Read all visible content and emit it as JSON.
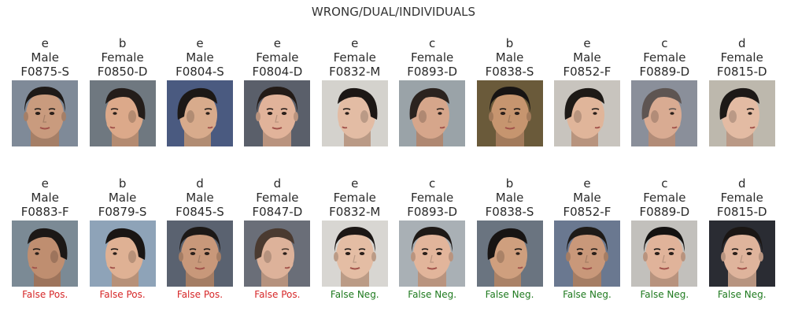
{
  "title": "WRONG/DUAL/INDIVIDUALS",
  "colors": {
    "false_pos": "#d62728",
    "false_neg": "#1f7a1f"
  },
  "row1": [
    {
      "cls": "e",
      "gender": "Male",
      "id": "F0875-S",
      "skin": "#c99b7e",
      "hair": "#1e1a18",
      "bg": "#7f8a98",
      "view": "front"
    },
    {
      "cls": "b",
      "gender": "Female",
      "id": "F0850-D",
      "skin": "#dca98a",
      "hair": "#241d1a",
      "bg": "#6f7880",
      "view": "left"
    },
    {
      "cls": "e",
      "gender": "Male",
      "id": "F0804-S",
      "skin": "#d8ab8c",
      "hair": "#1c1816",
      "bg": "#4a5a80",
      "view": "right"
    },
    {
      "cls": "e",
      "gender": "Female",
      "id": "F0804-D",
      "skin": "#e1b39a",
      "hair": "#231b17",
      "bg": "#5a5f6a",
      "view": "front"
    },
    {
      "cls": "e",
      "gender": "Female",
      "id": "F0832-M",
      "skin": "#e3bca4",
      "hair": "#1c1715",
      "bg": "#d4d2cd",
      "view": "left"
    },
    {
      "cls": "c",
      "gender": "Female",
      "id": "F0893-D",
      "skin": "#d6a68b",
      "hair": "#2b231f",
      "bg": "#9aa3a8",
      "view": "right"
    },
    {
      "cls": "b",
      "gender": "Male",
      "id": "F0838-S",
      "skin": "#c6956f",
      "hair": "#171413",
      "bg": "#6a5a3a",
      "view": "front"
    },
    {
      "cls": "e",
      "gender": "Male",
      "id": "F0852-F",
      "skin": "#e0b59a",
      "hair": "#1e1a17",
      "bg": "#c8c4be",
      "view": "right"
    },
    {
      "cls": "c",
      "gender": "Female",
      "id": "F0889-D",
      "skin": "#d9ab92",
      "hair": "#5e5552",
      "bg": "#8a8f9a",
      "view": "right"
    },
    {
      "cls": "d",
      "gender": "Female",
      "id": "F0815-D",
      "skin": "#e3bba3",
      "hair": "#1d1917",
      "bg": "#bdb8ad",
      "view": "right"
    }
  ],
  "row2": [
    {
      "cls": "e",
      "gender": "Male",
      "id": "F0883-F",
      "skin": "#bf8e70",
      "hair": "#1c1816",
      "bg": "#7b8a95",
      "view": "left",
      "error": "False Pos."
    },
    {
      "cls": "b",
      "gender": "Male",
      "id": "F0879-S",
      "skin": "#dfb194",
      "hair": "#1a1614",
      "bg": "#8ea3b8",
      "view": "left",
      "error": "False Pos."
    },
    {
      "cls": "d",
      "gender": "Male",
      "id": "F0845-S",
      "skin": "#c8987a",
      "hair": "#1c1816",
      "bg": "#5a6270",
      "view": "front",
      "error": "False Pos."
    },
    {
      "cls": "d",
      "gender": "Female",
      "id": "F0847-D",
      "skin": "#ddb29a",
      "hair": "#4a3a30",
      "bg": "#6a6e78",
      "view": "right",
      "error": "False Pos."
    },
    {
      "cls": "e",
      "gender": "Female",
      "id": "F0832-M",
      "skin": "#e4bda4",
      "hair": "#1c1715",
      "bg": "#d8d6d2",
      "view": "front",
      "error": "False Neg."
    },
    {
      "cls": "c",
      "gender": "Female",
      "id": "F0893-D",
      "skin": "#e2b59b",
      "hair": "#1e1916",
      "bg": "#a9b0b5",
      "view": "front",
      "error": "False Neg."
    },
    {
      "cls": "b",
      "gender": "Male",
      "id": "F0838-S",
      "skin": "#cf9f7e",
      "hair": "#171413",
      "bg": "#6a7480",
      "view": "right",
      "error": "False Neg."
    },
    {
      "cls": "e",
      "gender": "Male",
      "id": "F0852-F",
      "skin": "#c9987a",
      "hair": "#1e1a17",
      "bg": "#6a7890",
      "view": "front",
      "error": "False Neg."
    },
    {
      "cls": "c",
      "gender": "Female",
      "id": "F0889-D",
      "skin": "#e0b39a",
      "hair": "#141211",
      "bg": "#c2c0bc",
      "view": "front",
      "error": "False Neg."
    },
    {
      "cls": "d",
      "gender": "Female",
      "id": "F0815-D",
      "skin": "#dfb49c",
      "hair": "#1a1614",
      "bg": "#2a2c33",
      "view": "front",
      "error": "False Neg."
    }
  ]
}
